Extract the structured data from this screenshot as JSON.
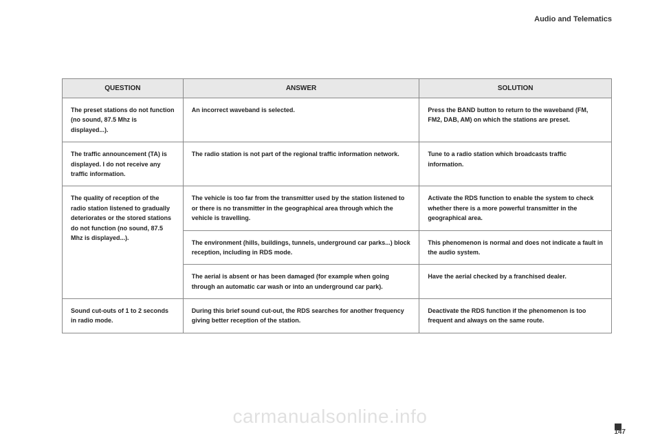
{
  "header": {
    "section": "Audio and Telematics"
  },
  "table": {
    "columns": [
      "QUESTION",
      "ANSWER",
      "SOLUTION"
    ],
    "rows": [
      {
        "q": "The preset stations do not function (no sound, 87.5 Mhz is displayed...).",
        "a": "An incorrect waveband is selected.",
        "s": "Press the BAND button to return to the waveband (FM, FM2, DAB, AM) on which the stations are preset."
      },
      {
        "q": "The traffic announcement (TA) is displayed. I do not receive any traffic information.",
        "a": "The radio station is not part of the regional traffic information network.",
        "s": "Tune to a radio station which broadcasts traffic information."
      },
      {
        "q": "The quality of reception of the radio station listened to gradually deteriorates or the stored stations do not function (no sound, 87.5 Mhz is displayed...).",
        "a": "The vehicle is too far from the transmitter used by the station listened to or there is no transmitter in the geographical area through which the vehicle is travelling.",
        "s": "Activate the RDS function to enable the system to check whether there is a more powerful transmitter in the geographical area."
      },
      {
        "q": "",
        "a": "The environment (hills, buildings, tunnels, underground car parks...) block reception, including in RDS mode.",
        "s": "This phenomenon is normal and does not indicate a fault in the audio system."
      },
      {
        "q": "",
        "a": "The aerial is absent or has been damaged (for example when going through an automatic car wash or into an underground car park).",
        "s": "Have the aerial checked by a franchised dealer."
      },
      {
        "q": "Sound cut-outs of 1 to 2 seconds in radio mode.",
        "a": "During this brief sound cut-out, the RDS searches for another frequency giving better reception of the station.",
        "s": "Deactivate the RDS function if the phenomenon is too frequent and always on the same route."
      }
    ]
  },
  "footer": {
    "watermark": "carmanualsonline.info",
    "page": "147"
  },
  "style": {
    "header_bg": "#e8e8e8",
    "border_color": "#888888",
    "text_color": "#222222",
    "font_size_header": 10,
    "font_size_cell": 9,
    "watermark_color": "rgba(0,0,0,0.12)"
  }
}
